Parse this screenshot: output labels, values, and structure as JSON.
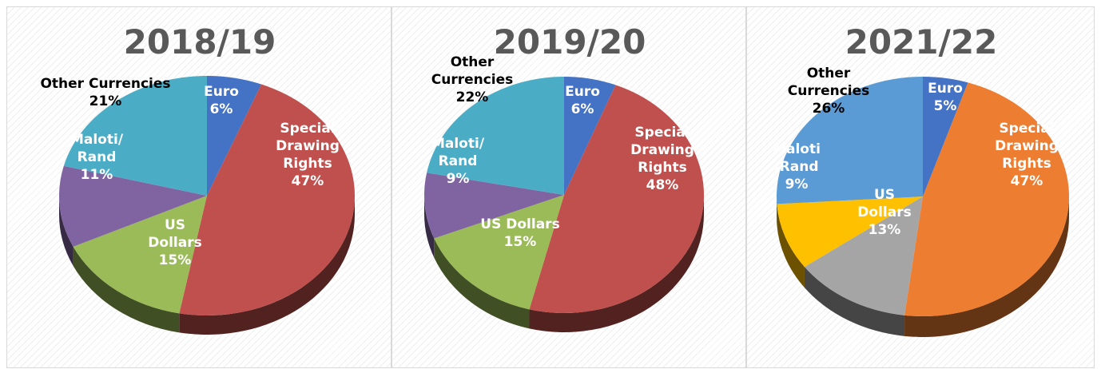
{
  "chart_data": [
    {
      "type": "pie",
      "title": "2018/19",
      "slices": [
        {
          "label": "Euro",
          "value": 6,
          "color": "#4472c4",
          "label_color": "#ffffff"
        },
        {
          "label": "Special Drawing Rights",
          "value": 47,
          "color": "#c0504d",
          "label_color": "#ffffff"
        },
        {
          "label": "US Dollars",
          "value": 15,
          "color": "#9bbb59",
          "label_color": "#ffffff"
        },
        {
          "label": "Maloti/ Rand",
          "value": 11,
          "color": "#8064a2",
          "label_color": "#ffffff"
        },
        {
          "label": "Other Currencies",
          "value": 21,
          "color": "#4bacc6",
          "label_color": "#000000"
        }
      ],
      "labels": [
        {
          "lines": [
            "Euro",
            "6%"
          ]
        },
        {
          "lines": [
            "Special",
            "Drawing",
            "Rights",
            "47%"
          ]
        },
        {
          "lines": [
            "US",
            "Dollars",
            "15%"
          ]
        },
        {
          "lines": [
            "Maloti/",
            "Rand",
            "11%"
          ]
        },
        {
          "lines": [
            "Other Currencies",
            "21%"
          ]
        }
      ]
    },
    {
      "type": "pie",
      "title": "2019/20",
      "slices": [
        {
          "label": "Euro",
          "value": 6,
          "color": "#4472c4",
          "label_color": "#ffffff"
        },
        {
          "label": "Special Drawing Rights",
          "value": 48,
          "color": "#c0504d",
          "label_color": "#ffffff"
        },
        {
          "label": "US Dollars",
          "value": 15,
          "color": "#9bbb59",
          "label_color": "#ffffff"
        },
        {
          "label": "Maloti/ Rand",
          "value": 9,
          "color": "#8064a2",
          "label_color": "#ffffff"
        },
        {
          "label": "Other Currencies",
          "value": 22,
          "color": "#4bacc6",
          "label_color": "#000000"
        }
      ],
      "labels": [
        {
          "lines": [
            "Euro",
            "6%"
          ]
        },
        {
          "lines": [
            "Special",
            "Drawing",
            "Rights",
            "48%"
          ]
        },
        {
          "lines": [
            "US Dollars",
            "15%"
          ]
        },
        {
          "lines": [
            "Maloti/",
            "Rand",
            "9%"
          ]
        },
        {
          "lines": [
            "Other",
            "Currencies",
            "22%"
          ]
        }
      ]
    },
    {
      "type": "pie",
      "title": "2021/22",
      "slices": [
        {
          "label": "Euro",
          "value": 5,
          "color": "#4472c4",
          "label_color": "#ffffff"
        },
        {
          "label": "Special Drawing Rights",
          "value": 47,
          "color": "#ed7d31",
          "label_color": "#ffffff"
        },
        {
          "label": "US Dollars",
          "value": 13,
          "color": "#a5a5a5",
          "label_color": "#ffffff"
        },
        {
          "label": "Maloti/Rand",
          "value": 9,
          "color": "#ffc000",
          "label_color": "#ffffff"
        },
        {
          "label": "Other Currencies",
          "value": 26,
          "color": "#5b9bd5",
          "label_color": "#000000"
        }
      ],
      "labels": [
        {
          "lines": [
            "Euro",
            "5%"
          ]
        },
        {
          "lines": [
            "Special",
            "Drawing",
            "Rights",
            "47%"
          ]
        },
        {
          "lines": [
            "US",
            "Dollars",
            "13%"
          ]
        },
        {
          "lines": [
            "Maloti",
            "/Rand",
            "9%"
          ]
        },
        {
          "lines": [
            "Other",
            "Currencies",
            "26%"
          ]
        }
      ]
    }
  ]
}
